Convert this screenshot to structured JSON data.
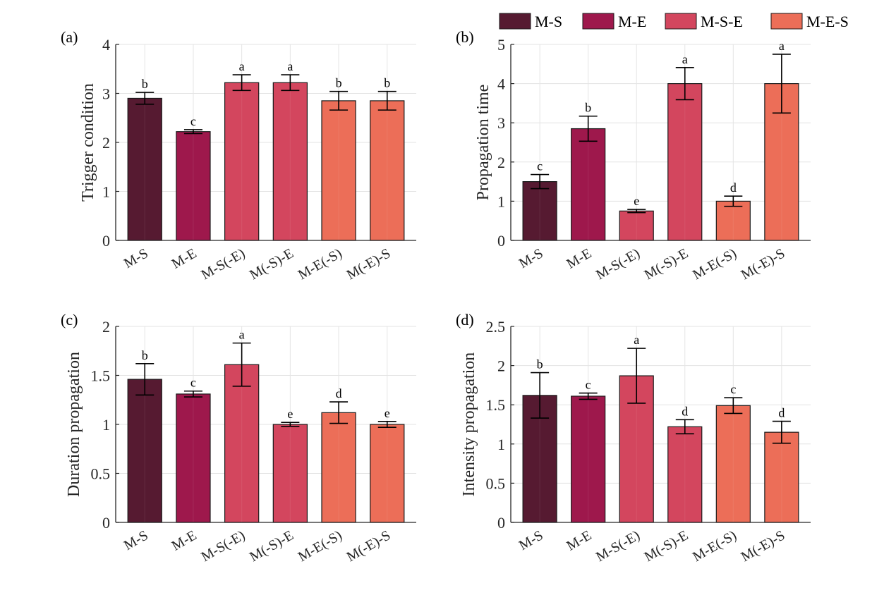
{
  "chart_data": {
    "legend": {
      "placement": "top-right",
      "entries": [
        {
          "name": "M-S",
          "color": "#561A31"
        },
        {
          "name": "M-E",
          "color": "#9E184C"
        },
        {
          "name": "M-S-E",
          "color": "#D3465E"
        },
        {
          "name": "M-E-S",
          "color": "#EC6E58"
        }
      ]
    },
    "categories": [
      "M-S",
      "M-E",
      "M-S(-E)",
      "M(-S)-E",
      "M-E(-S)",
      "M(-E)-S"
    ],
    "category_colors": [
      "#561A31",
      "#9E184C",
      "#D3465E",
      "#D3465E",
      "#EC6E58",
      "#EC6E58"
    ],
    "panels": [
      {
        "type": "bar",
        "panel_label": "(a)",
        "ylabel": "Trigger condition",
        "ylim": [
          0,
          4
        ],
        "yticks": [
          "0",
          "1",
          "2",
          "3",
          "4"
        ],
        "ytick_values": [
          0,
          1,
          2,
          3,
          4
        ],
        "grid": true,
        "values": [
          2.9,
          2.22,
          3.22,
          3.22,
          2.85,
          2.85
        ],
        "errors": [
          0.12,
          0.04,
          0.16,
          0.16,
          0.19,
          0.19
        ],
        "significance": [
          "b",
          "c",
          "a",
          "a",
          "b",
          "b"
        ]
      },
      {
        "type": "bar",
        "panel_label": "(b)",
        "ylabel": "Propagation time",
        "ylim": [
          0,
          5
        ],
        "yticks": [
          "0",
          "1",
          "2",
          "3",
          "4",
          "5"
        ],
        "ytick_values": [
          0,
          1,
          2,
          3,
          4,
          5
        ],
        "grid": true,
        "values": [
          1.5,
          2.85,
          0.75,
          4.0,
          1.0,
          4.0
        ],
        "errors": [
          0.18,
          0.32,
          0.04,
          0.41,
          0.13,
          0.75
        ],
        "significance": [
          "c",
          "b",
          "e",
          "a",
          "d",
          "a"
        ]
      },
      {
        "type": "bar",
        "panel_label": "(c)",
        "ylabel": "Duration propagation",
        "ylim": [
          0,
          2
        ],
        "yticks": [
          "0",
          "0.5",
          "1",
          "1.5",
          "2"
        ],
        "ytick_values": [
          0,
          0.5,
          1,
          1.5,
          2
        ],
        "grid": true,
        "values": [
          1.46,
          1.31,
          1.61,
          1.0,
          1.12,
          1.0
        ],
        "errors": [
          0.16,
          0.03,
          0.22,
          0.02,
          0.11,
          0.03
        ],
        "significance": [
          "b",
          "c",
          "a",
          "e",
          "d",
          "e"
        ]
      },
      {
        "type": "bar",
        "panel_label": "(d)",
        "ylabel": "Intensity propagation",
        "ylim": [
          0,
          2.5
        ],
        "yticks": [
          "0",
          "0.5",
          "1",
          "1.5",
          "2",
          "2.5"
        ],
        "ytick_values": [
          0,
          0.5,
          1,
          1.5,
          2,
          2.5
        ],
        "grid": true,
        "values": [
          1.62,
          1.61,
          1.87,
          1.22,
          1.49,
          1.15
        ],
        "errors": [
          0.29,
          0.04,
          0.35,
          0.09,
          0.1,
          0.14
        ],
        "significance": [
          "b",
          "c",
          "a",
          "d",
          "c",
          "d"
        ]
      }
    ]
  }
}
